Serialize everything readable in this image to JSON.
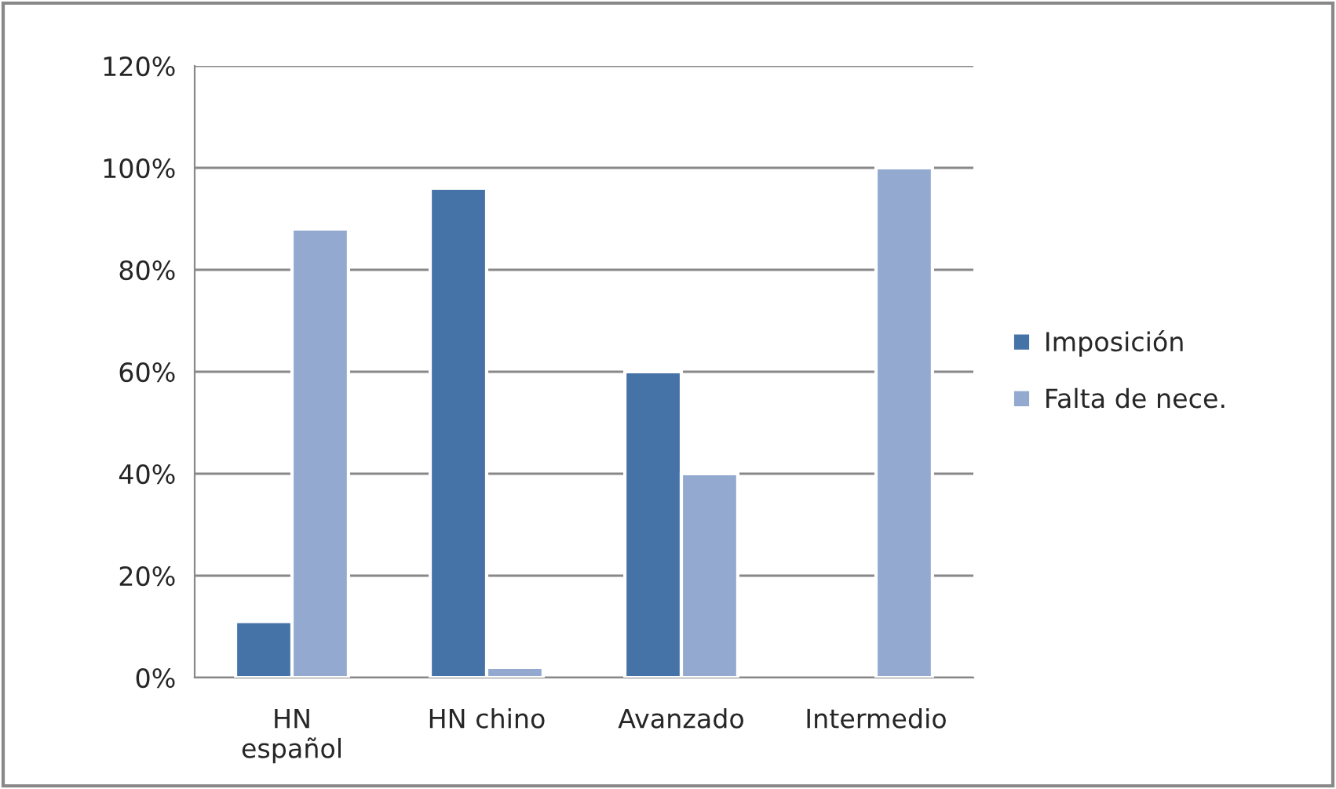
{
  "chart_data": {
    "type": "bar",
    "categories": [
      "HN\nespañol",
      "HN chino",
      "Avanzado",
      "Intermedio"
    ],
    "series": [
      {
        "name": "Imposición",
        "color": "#4572a7",
        "values": [
          11,
          96,
          60,
          null
        ]
      },
      {
        "name": "Falta de nece.",
        "color": "#93a9cf",
        "values": [
          88,
          2,
          40,
          100
        ]
      }
    ],
    "ylim": [
      0,
      120
    ],
    "yticks": [
      {
        "value": 0,
        "label": "0%"
      },
      {
        "value": 20,
        "label": "20%"
      },
      {
        "value": 40,
        "label": "40%"
      },
      {
        "value": 60,
        "label": "60%"
      },
      {
        "value": 80,
        "label": "80%"
      },
      {
        "value": 100,
        "label": "100%"
      },
      {
        "value": 120,
        "label": "120%"
      }
    ],
    "grid": "y",
    "legend": "right"
  }
}
